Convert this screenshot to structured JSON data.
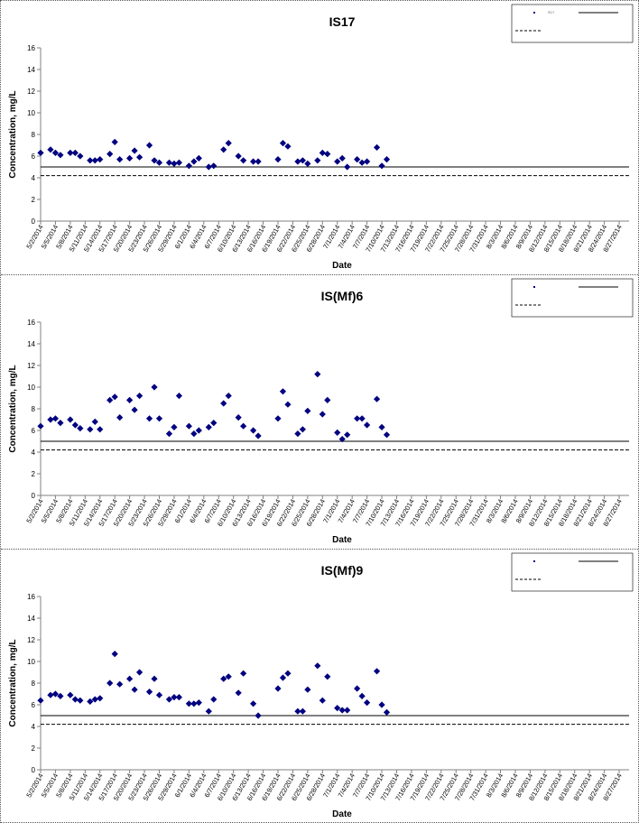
{
  "chart_data": [
    {
      "type": "scatter",
      "title": "IS17",
      "xlabel": "Date",
      "ylabel": "Concentration, mg/L",
      "ylim": [
        0,
        16
      ],
      "yticks": [
        0,
        2,
        4,
        6,
        8,
        10,
        12,
        14,
        16
      ],
      "grid": false,
      "legend_position": "top-right",
      "xlim": [
        "5/2/2014",
        "8/29/2014"
      ],
      "x_tick_labels": [
        "5/2/2014",
        "5/5/2014",
        "5/8/2014",
        "5/11/2014",
        "5/14/2014",
        "5/17/2014",
        "5/20/2014",
        "5/23/2014",
        "5/26/2014",
        "5/29/2014",
        "6/1/2014",
        "6/4/2014",
        "6/7/2014",
        "6/10/2014",
        "6/13/2014",
        "6/16/2014",
        "6/19/2014",
        "6/22/2014",
        "6/25/2014",
        "6/28/2014",
        "7/1/2014",
        "7/4/2014",
        "7/7/2014",
        "7/10/2014",
        "7/13/2014",
        "7/16/2014",
        "7/19/2014",
        "7/22/2014",
        "7/25/2014",
        "7/28/2014",
        "7/31/2014",
        "8/3/2014",
        "8/6/2014",
        "8/9/2014",
        "8/12/2014",
        "8/15/2014",
        "8/18/2014",
        "8/21/2014",
        "8/24/2014",
        "8/27/2014"
      ],
      "points": [
        {
          "x": "5/2/2014",
          "y": 6.3
        },
        {
          "x": "5/4/2014",
          "y": 6.6
        },
        {
          "x": "5/5/2014",
          "y": 6.3
        },
        {
          "x": "5/6/2014",
          "y": 6.1
        },
        {
          "x": "5/8/2014",
          "y": 6.3
        },
        {
          "x": "5/9/2014",
          "y": 6.3
        },
        {
          "x": "5/10/2014",
          "y": 6.0
        },
        {
          "x": "5/12/2014",
          "y": 5.6
        },
        {
          "x": "5/13/2014",
          "y": 5.6
        },
        {
          "x": "5/14/2014",
          "y": 5.7
        },
        {
          "x": "5/16/2014",
          "y": 6.2
        },
        {
          "x": "5/17/2014",
          "y": 7.3
        },
        {
          "x": "5/18/2014",
          "y": 5.7
        },
        {
          "x": "5/20/2014",
          "y": 5.8
        },
        {
          "x": "5/21/2014",
          "y": 6.5
        },
        {
          "x": "5/22/2014",
          "y": 5.9
        },
        {
          "x": "5/24/2014",
          "y": 7.0
        },
        {
          "x": "5/25/2014",
          "y": 5.6
        },
        {
          "x": "5/26/2014",
          "y": 5.4
        },
        {
          "x": "5/28/2014",
          "y": 5.4
        },
        {
          "x": "5/29/2014",
          "y": 5.3
        },
        {
          "x": "5/30/2014",
          "y": 5.4
        },
        {
          "x": "6/1/2014",
          "y": 5.1
        },
        {
          "x": "6/2/2014",
          "y": 5.5
        },
        {
          "x": "6/3/2014",
          "y": 5.8
        },
        {
          "x": "6/5/2014",
          "y": 5.0
        },
        {
          "x": "6/6/2014",
          "y": 5.1
        },
        {
          "x": "6/8/2014",
          "y": 6.6
        },
        {
          "x": "6/9/2014",
          "y": 7.2
        },
        {
          "x": "6/11/2014",
          "y": 6.0
        },
        {
          "x": "6/12/2014",
          "y": 5.6
        },
        {
          "x": "6/14/2014",
          "y": 5.5
        },
        {
          "x": "6/15/2014",
          "y": 5.5
        },
        {
          "x": "6/19/2014",
          "y": 5.7
        },
        {
          "x": "6/20/2014",
          "y": 7.2
        },
        {
          "x": "6/21/2014",
          "y": 6.9
        },
        {
          "x": "6/23/2014",
          "y": 5.5
        },
        {
          "x": "6/24/2014",
          "y": 5.6
        },
        {
          "x": "6/25/2014",
          "y": 5.3
        },
        {
          "x": "6/27/2014",
          "y": 5.6
        },
        {
          "x": "6/28/2014",
          "y": 6.3
        },
        {
          "x": "6/29/2014",
          "y": 6.2
        },
        {
          "x": "7/1/2014",
          "y": 5.5
        },
        {
          "x": "7/2/2014",
          "y": 5.8
        },
        {
          "x": "7/3/2014",
          "y": 5.0
        },
        {
          "x": "7/5/2014",
          "y": 5.7
        },
        {
          "x": "7/6/2014",
          "y": 5.4
        },
        {
          "x": "7/7/2014",
          "y": 5.5
        },
        {
          "x": "7/9/2014",
          "y": 6.8
        },
        {
          "x": "7/10/2014",
          "y": 5.1
        },
        {
          "x": "7/11/2014",
          "y": 5.7
        }
      ],
      "hlines": [
        5.0,
        4.2
      ],
      "hline_styles": [
        "solid",
        "dashed"
      ],
      "legend": [
        "IS17",
        "",
        ""
      ]
    },
    {
      "type": "scatter",
      "title": "IS(Mf)6",
      "xlabel": "Date",
      "ylabel": "Concentration, mg/L",
      "ylim": [
        0,
        16
      ],
      "yticks": [
        0,
        2,
        4,
        6,
        8,
        10,
        12,
        14,
        16
      ],
      "grid": false,
      "legend_position": "top-right",
      "xlim": [
        "5/2/2014",
        "8/29/2014"
      ],
      "x_tick_labels": [
        "5/2/2014",
        "5/5/2014",
        "5/8/2014",
        "5/11/2014",
        "5/14/2014",
        "5/17/2014",
        "5/20/2014",
        "5/23/2014",
        "5/26/2014",
        "5/29/2014",
        "6/1/2014",
        "6/4/2014",
        "6/7/2014",
        "6/10/2014",
        "6/13/2014",
        "6/16/2014",
        "6/19/2014",
        "6/22/2014",
        "6/25/2014",
        "6/28/2014",
        "7/1/2014",
        "7/4/2014",
        "7/7/2014",
        "7/10/2014",
        "7/13/2014",
        "7/16/2014",
        "7/19/2014",
        "7/22/2014",
        "7/25/2014",
        "7/28/2014",
        "7/31/2014",
        "8/3/2014",
        "8/6/2014",
        "8/9/2014",
        "8/12/2014",
        "8/15/2014",
        "8/18/2014",
        "8/21/2014",
        "8/24/2014",
        "8/27/2014"
      ],
      "points": [
        {
          "x": "5/2/2014",
          "y": 6.4
        },
        {
          "x": "5/4/2014",
          "y": 7.0
        },
        {
          "x": "5/5/2014",
          "y": 7.1
        },
        {
          "x": "5/6/2014",
          "y": 6.7
        },
        {
          "x": "5/8/2014",
          "y": 7.0
        },
        {
          "x": "5/9/2014",
          "y": 6.5
        },
        {
          "x": "5/10/2014",
          "y": 6.2
        },
        {
          "x": "5/12/2014",
          "y": 6.1
        },
        {
          "x": "5/13/2014",
          "y": 6.8
        },
        {
          "x": "5/14/2014",
          "y": 6.1
        },
        {
          "x": "5/16/2014",
          "y": 8.8
        },
        {
          "x": "5/17/2014",
          "y": 9.1
        },
        {
          "x": "5/18/2014",
          "y": 7.2
        },
        {
          "x": "5/20/2014",
          "y": 8.8
        },
        {
          "x": "5/21/2014",
          "y": 7.9
        },
        {
          "x": "5/22/2014",
          "y": 9.2
        },
        {
          "x": "5/24/2014",
          "y": 7.1
        },
        {
          "x": "5/25/2014",
          "y": 10.0
        },
        {
          "x": "5/26/2014",
          "y": 7.1
        },
        {
          "x": "5/28/2014",
          "y": 5.7
        },
        {
          "x": "5/29/2014",
          "y": 6.3
        },
        {
          "x": "5/30/2014",
          "y": 9.2
        },
        {
          "x": "6/1/2014",
          "y": 6.4
        },
        {
          "x": "6/2/2014",
          "y": 5.7
        },
        {
          "x": "6/3/2014",
          "y": 6.0
        },
        {
          "x": "6/5/2014",
          "y": 6.3
        },
        {
          "x": "6/6/2014",
          "y": 6.7
        },
        {
          "x": "6/8/2014",
          "y": 8.5
        },
        {
          "x": "6/9/2014",
          "y": 9.2
        },
        {
          "x": "6/11/2014",
          "y": 7.2
        },
        {
          "x": "6/12/2014",
          "y": 6.4
        },
        {
          "x": "6/14/2014",
          "y": 6.0
        },
        {
          "x": "6/15/2014",
          "y": 5.5
        },
        {
          "x": "6/19/2014",
          "y": 7.1
        },
        {
          "x": "6/20/2014",
          "y": 9.6
        },
        {
          "x": "6/21/2014",
          "y": 8.4
        },
        {
          "x": "6/23/2014",
          "y": 5.7
        },
        {
          "x": "6/24/2014",
          "y": 6.1
        },
        {
          "x": "6/25/2014",
          "y": 7.8
        },
        {
          "x": "6/27/2014",
          "y": 11.2
        },
        {
          "x": "6/28/2014",
          "y": 7.5
        },
        {
          "x": "6/29/2014",
          "y": 8.8
        },
        {
          "x": "7/1/2014",
          "y": 5.8
        },
        {
          "x": "7/2/2014",
          "y": 5.2
        },
        {
          "x": "7/3/2014",
          "y": 5.6
        },
        {
          "x": "7/5/2014",
          "y": 7.1
        },
        {
          "x": "7/6/2014",
          "y": 7.1
        },
        {
          "x": "7/7/2014",
          "y": 6.5
        },
        {
          "x": "7/9/2014",
          "y": 8.9
        },
        {
          "x": "7/10/2014",
          "y": 6.3
        },
        {
          "x": "7/11/2014",
          "y": 5.6
        }
      ],
      "hlines": [
        5.0,
        4.2
      ],
      "hline_styles": [
        "solid",
        "dashed"
      ],
      "legend": [
        "",
        "",
        ""
      ]
    },
    {
      "type": "scatter",
      "title": "IS(Mf)9",
      "xlabel": "Date",
      "ylabel": "Concentration, mg/L",
      "ylim": [
        0,
        16
      ],
      "yticks": [
        0,
        2,
        4,
        6,
        8,
        10,
        12,
        14,
        16
      ],
      "grid": false,
      "legend_position": "top-right",
      "xlim": [
        "5/2/2014",
        "8/29/2014"
      ],
      "x_tick_labels": [
        "5/2/2014",
        "5/5/2014",
        "5/8/2014",
        "5/11/2014",
        "5/14/2014",
        "5/17/2014",
        "5/20/2014",
        "5/23/2014",
        "5/26/2014",
        "5/29/2014",
        "6/1/2014",
        "6/4/2014",
        "6/7/2014",
        "6/10/2014",
        "6/13/2014",
        "6/16/2014",
        "6/19/2014",
        "6/22/2014",
        "6/25/2014",
        "6/28/2014",
        "7/1/2014",
        "7/4/2014",
        "7/7/2014",
        "7/10/2014",
        "7/13/2014",
        "7/16/2014",
        "7/19/2014",
        "7/22/2014",
        "7/25/2014",
        "7/28/2014",
        "7/31/2014",
        "8/3/2014",
        "8/6/2014",
        "8/9/2014",
        "8/12/2014",
        "8/15/2014",
        "8/18/2014",
        "8/21/2014",
        "8/24/2014",
        "8/27/2014"
      ],
      "points": [
        {
          "x": "5/2/2014",
          "y": 6.4
        },
        {
          "x": "5/4/2014",
          "y": 6.9
        },
        {
          "x": "5/5/2014",
          "y": 7.0
        },
        {
          "x": "5/6/2014",
          "y": 6.8
        },
        {
          "x": "5/8/2014",
          "y": 6.9
        },
        {
          "x": "5/9/2014",
          "y": 6.5
        },
        {
          "x": "5/10/2014",
          "y": 6.4
        },
        {
          "x": "5/12/2014",
          "y": 6.3
        },
        {
          "x": "5/13/2014",
          "y": 6.5
        },
        {
          "x": "5/14/2014",
          "y": 6.6
        },
        {
          "x": "5/16/2014",
          "y": 8.0
        },
        {
          "x": "5/17/2014",
          "y": 10.7
        },
        {
          "x": "5/18/2014",
          "y": 7.9
        },
        {
          "x": "5/20/2014",
          "y": 8.4
        },
        {
          "x": "5/21/2014",
          "y": 7.4
        },
        {
          "x": "5/22/2014",
          "y": 9.0
        },
        {
          "x": "5/24/2014",
          "y": 7.2
        },
        {
          "x": "5/25/2014",
          "y": 8.4
        },
        {
          "x": "5/26/2014",
          "y": 6.9
        },
        {
          "x": "5/28/2014",
          "y": 6.5
        },
        {
          "x": "5/29/2014",
          "y": 6.7
        },
        {
          "x": "5/30/2014",
          "y": 6.7
        },
        {
          "x": "6/1/2014",
          "y": 6.1
        },
        {
          "x": "6/2/2014",
          "y": 6.1
        },
        {
          "x": "6/3/2014",
          "y": 6.2
        },
        {
          "x": "6/5/2014",
          "y": 5.4
        },
        {
          "x": "6/6/2014",
          "y": 6.5
        },
        {
          "x": "6/8/2014",
          "y": 8.4
        },
        {
          "x": "6/9/2014",
          "y": 8.6
        },
        {
          "x": "6/11/2014",
          "y": 7.1
        },
        {
          "x": "6/12/2014",
          "y": 8.9
        },
        {
          "x": "6/14/2014",
          "y": 6.1
        },
        {
          "x": "6/15/2014",
          "y": 5.0
        },
        {
          "x": "6/19/2014",
          "y": 7.5
        },
        {
          "x": "6/20/2014",
          "y": 8.5
        },
        {
          "x": "6/21/2014",
          "y": 8.9
        },
        {
          "x": "6/23/2014",
          "y": 5.4
        },
        {
          "x": "6/24/2014",
          "y": 5.4
        },
        {
          "x": "6/25/2014",
          "y": 7.4
        },
        {
          "x": "6/27/2014",
          "y": 9.6
        },
        {
          "x": "6/28/2014",
          "y": 6.4
        },
        {
          "x": "6/29/2014",
          "y": 8.6
        },
        {
          "x": "7/1/2014",
          "y": 5.7
        },
        {
          "x": "7/2/2014",
          "y": 5.5
        },
        {
          "x": "7/3/2014",
          "y": 5.5
        },
        {
          "x": "7/5/2014",
          "y": 7.5
        },
        {
          "x": "7/6/2014",
          "y": 6.8
        },
        {
          "x": "7/7/2014",
          "y": 6.2
        },
        {
          "x": "7/9/2014",
          "y": 9.1
        },
        {
          "x": "7/10/2014",
          "y": 6.0
        },
        {
          "x": "7/11/2014",
          "y": 5.3
        }
      ],
      "hlines": [
        5.0,
        4.2
      ],
      "hline_styles": [
        "solid",
        "dashed"
      ],
      "legend": [
        "",
        "",
        ""
      ]
    }
  ],
  "colors": {
    "marker": "#000080",
    "line": "#000000",
    "axis": "#808080"
  }
}
